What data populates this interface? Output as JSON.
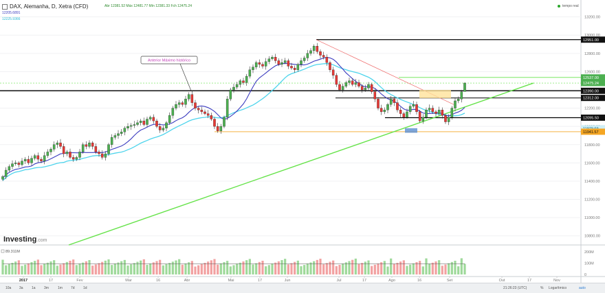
{
  "header": {
    "title": "DAX, Alemanha, D, Xetra (CFD)",
    "ohlc": "Abr 12381.52  Máx 12481.77  Mín 12381.33  Fch 12475.24",
    "ma_fast": "12205.6891",
    "ma_slow": "12225.9366",
    "live_label": "tempo real",
    "logo_main": "Investing",
    "logo_suffix": ".com"
  },
  "annotation": {
    "text": "Anterior Máximo histórico"
  },
  "colors": {
    "up": "#4caf50",
    "down": "#e53935",
    "ma_fast": "#3b3bbf",
    "ma_slow": "#4dd4ec",
    "trendline": "#66e34a",
    "level": "#000000",
    "orange_level": "#f5a623"
  },
  "chart_data": {
    "type": "candlestick",
    "title": "DAX, Alemanha, D, Xetra (CFD)",
    "timeframe": "D",
    "y_ticks": [
      10800,
      11000,
      11200,
      11400,
      11600,
      11800,
      12000,
      12200,
      12400,
      12600,
      12800,
      13000,
      13200
    ],
    "ylim": [
      10700,
      13220
    ],
    "x_ticks": [
      "2017",
      "17",
      "Fev",
      "Mar",
      "16",
      "Abr",
      "Mai",
      "17",
      "Jun",
      "Jul",
      "17",
      "Ago",
      "16",
      "Set",
      "Out",
      "17",
      "Nov"
    ],
    "last": {
      "open": 12381.52,
      "high": 12481.77,
      "low": 12381.33,
      "close": 12475.24
    },
    "price_labels": [
      {
        "value": "12951.00",
        "kind": "black"
      },
      {
        "value": "12537.00",
        "kind": "green"
      },
      {
        "value": "12475.24",
        "kind": "green"
      },
      {
        "value": "12390.00",
        "kind": "black"
      },
      {
        "value": "12312.00",
        "kind": "black"
      },
      {
        "value": "12095.50",
        "kind": "black"
      },
      {
        "value": "11979.69",
        "kind": "cyan"
      },
      {
        "value": "11941.57",
        "kind": "orange"
      }
    ],
    "horizontal_levels": [
      12951,
      12537,
      12475,
      12390,
      12312,
      12095.5,
      11941.57
    ],
    "annotation": "Anterior Máximo histórico",
    "volume": {
      "label": "89.311M",
      "y_ticks": [
        "200M",
        "100M",
        "0"
      ]
    },
    "closes": [
      11450,
      11520,
      11560,
      11590,
      11600,
      11580,
      11620,
      11640,
      11600,
      11650,
      11680,
      11640,
      11620,
      11680,
      11720,
      11750,
      11800,
      11820,
      11780,
      11700,
      11720,
      11660,
      11640,
      11660,
      11720,
      11800,
      11780,
      11820,
      11780,
      11720,
      11700,
      11660,
      11700,
      11800,
      11880,
      11900,
      11920,
      11940,
      11980,
      12000,
      12010,
      12020,
      12040,
      12060,
      12020,
      12080,
      12100,
      12060,
      12000,
      11960,
      11980,
      12040,
      12120,
      12200,
      12240,
      12260,
      12240,
      12300,
      12350,
      12260,
      12200,
      12180,
      12160,
      12140,
      12120,
      12080,
      12000,
      11950,
      12000,
      12100,
      12300,
      12400,
      12430,
      12460,
      12500,
      12480,
      12550,
      12620,
      12650,
      12700,
      12680,
      12660,
      12710,
      12740,
      12760,
      12720,
      12680,
      12700,
      12720,
      12660,
      12640,
      12620,
      12680,
      12720,
      12750,
      12800,
      12830,
      12880,
      12820,
      12780,
      12760,
      12700,
      12620,
      12560,
      12460,
      12400,
      12440,
      12480,
      12500,
      12460,
      12480,
      12440,
      12400,
      12420,
      12460,
      12380,
      12300,
      12200,
      12160,
      12180,
      12240,
      12300,
      12260,
      12180,
      12140,
      12100,
      12160,
      12220,
      12240,
      12160,
      12060,
      12100,
      12180,
      12200,
      12160,
      12140,
      12180,
      12120,
      12050,
      12100,
      12200,
      12280,
      12300,
      12380,
      12475
    ]
  }
}
